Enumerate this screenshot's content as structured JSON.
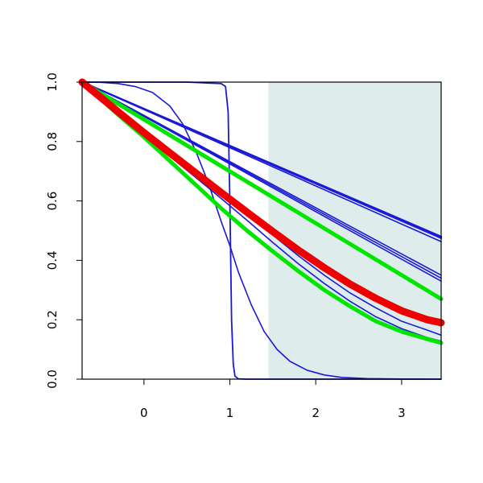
{
  "chart_data": {
    "type": "line",
    "title": "",
    "xlabel": "",
    "ylabel": "",
    "xlim": [
      -0.72,
      3.46
    ],
    "ylim": [
      0.0,
      1.0
    ],
    "x_ticks": [
      0,
      1,
      2,
      3
    ],
    "x_tick_labels": [
      "0",
      "1",
      "2",
      "3"
    ],
    "y_ticks": [
      0.0,
      0.2,
      0.4,
      0.6,
      0.8,
      1.0
    ],
    "y_tick_labels": [
      "0.0",
      "0.2",
      "0.4",
      "0.6",
      "0.8",
      "1.0"
    ],
    "grid": false,
    "legend": "none",
    "shaded_region": {
      "x_start": 1.45,
      "x_end": 3.46,
      "color": "#dfecec"
    },
    "colors": {
      "blue": "#1a1ad6",
      "green": "#00e600",
      "red": "#ee0000"
    },
    "series": [
      {
        "color": "blue",
        "width": 2.2,
        "x": [
          -0.72,
          3.46
        ],
        "y": [
          1.0,
          0.48
        ]
      },
      {
        "color": "blue",
        "width": 2.2,
        "x": [
          -0.72,
          3.46
        ],
        "y": [
          1.0,
          0.475
        ]
      },
      {
        "color": "blue",
        "width": 1.6,
        "x": [
          -0.72,
          3.46
        ],
        "y": [
          1.0,
          0.463
        ]
      },
      {
        "color": "blue",
        "width": 1.6,
        "x": [
          -0.72,
          3.46
        ],
        "y": [
          1.0,
          0.35
        ]
      },
      {
        "color": "blue",
        "width": 1.6,
        "x": [
          -0.72,
          3.46
        ],
        "y": [
          1.0,
          0.34
        ]
      },
      {
        "color": "blue",
        "width": 1.6,
        "x": [
          -0.72,
          3.46
        ],
        "y": [
          1.0,
          0.33
        ]
      },
      {
        "color": "blue",
        "width": 1.6,
        "x": [
          -0.72,
          -0.3,
          0.0,
          0.3,
          0.6,
          0.9,
          1.2,
          1.5,
          1.8,
          2.1,
          2.4,
          2.7,
          3.0,
          3.3,
          3.46
        ],
        "y": [
          1.0,
          0.89,
          0.82,
          0.75,
          0.68,
          0.608,
          0.535,
          0.46,
          0.388,
          0.322,
          0.262,
          0.21,
          0.17,
          0.14,
          0.128
        ]
      },
      {
        "color": "blue",
        "width": 1.6,
        "x": [
          -0.72,
          -0.3,
          0.0,
          0.3,
          0.6,
          0.9,
          1.2,
          1.5,
          1.8,
          2.1,
          2.4,
          2.7,
          3.0,
          3.3,
          3.46
        ],
        "y": [
          1.0,
          0.9,
          0.835,
          0.765,
          0.695,
          0.625,
          0.555,
          0.485,
          0.415,
          0.35,
          0.29,
          0.24,
          0.195,
          0.165,
          0.148
        ]
      },
      {
        "color": "blue",
        "width": 1.6,
        "x": [
          -0.72,
          -0.5,
          -0.3,
          -0.1,
          0.1,
          0.3,
          0.45,
          0.6,
          0.75,
          0.9,
          1.0,
          1.1,
          1.25,
          1.4,
          1.55,
          1.7,
          1.9,
          2.1,
          2.3,
          2.6,
          3.0,
          3.46
        ],
        "y": [
          1.0,
          0.999,
          0.995,
          0.985,
          0.965,
          0.92,
          0.86,
          0.77,
          0.66,
          0.53,
          0.45,
          0.36,
          0.25,
          0.16,
          0.1,
          0.06,
          0.03,
          0.014,
          0.006,
          0.002,
          0.0005,
          0.0
        ]
      },
      {
        "color": "blue",
        "width": 1.8,
        "x": [
          -0.72,
          0.0,
          0.5,
          0.9,
          0.95,
          0.98,
          1.0,
          1.02,
          1.04,
          1.06,
          1.1,
          1.2,
          1.5,
          3.46
        ],
        "y": [
          1.0,
          1.0,
          1.0,
          0.995,
          0.985,
          0.9,
          0.6,
          0.2,
          0.05,
          0.01,
          0.001,
          0.0,
          0.0,
          0.0
        ]
      },
      {
        "color": "green",
        "width": 5,
        "x": [
          -0.72,
          3.46
        ],
        "y": [
          1.0,
          0.27
        ]
      },
      {
        "color": "green",
        "width": 5,
        "x": [
          -0.72,
          -0.3,
          0.0,
          0.3,
          0.6,
          0.9,
          1.2,
          1.5,
          1.8,
          2.1,
          2.4,
          2.7,
          3.0,
          3.3,
          3.46
        ],
        "y": [
          1.0,
          0.89,
          0.815,
          0.735,
          0.655,
          0.575,
          0.5,
          0.43,
          0.363,
          0.3,
          0.245,
          0.195,
          0.16,
          0.135,
          0.122
        ]
      },
      {
        "color": "red",
        "width": 9,
        "x": [
          -0.72,
          -0.3,
          0.0,
          0.3,
          0.6,
          0.9,
          1.2,
          1.5,
          1.8,
          2.1,
          2.4,
          2.7,
          3.0,
          3.3,
          3.46
        ],
        "y": [
          1.0,
          0.9,
          0.83,
          0.762,
          0.695,
          0.628,
          0.562,
          0.497,
          0.434,
          0.375,
          0.32,
          0.272,
          0.23,
          0.2,
          0.19
        ]
      }
    ]
  }
}
